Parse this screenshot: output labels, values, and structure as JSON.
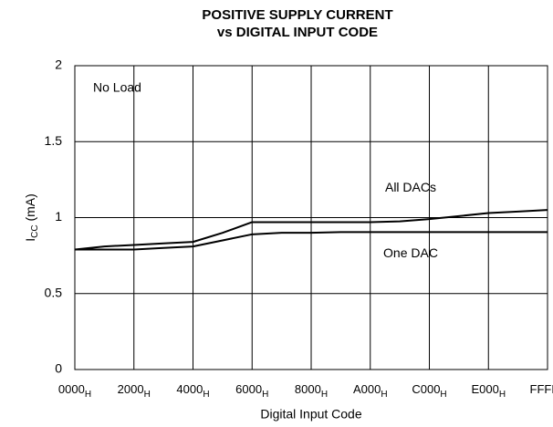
{
  "chart_data": {
    "type": "line",
    "title": [
      "POSITIVE SUPPLY CURRENT",
      "vs DIGITAL INPUT CODE"
    ],
    "xlabel": "Digital Input Code",
    "ylabel_parts": [
      "I",
      "CC",
      " (mA)"
    ],
    "xlim": [
      0,
      65535
    ],
    "xticks": [
      {
        "value": 0,
        "label": "0000",
        "sub": "H"
      },
      {
        "value": 8192,
        "label": "2000",
        "sub": "H"
      },
      {
        "value": 16384,
        "label": "4000",
        "sub": "H"
      },
      {
        "value": 24576,
        "label": "6000",
        "sub": "H"
      },
      {
        "value": 32768,
        "label": "8000",
        "sub": "H"
      },
      {
        "value": 40960,
        "label": "A000",
        "sub": "H"
      },
      {
        "value": 49152,
        "label": "C000",
        "sub": "H"
      },
      {
        "value": 57344,
        "label": "E000",
        "sub": "H"
      },
      {
        "value": 65535,
        "label": "FFFF",
        "sub": "H"
      }
    ],
    "ylim": [
      0,
      2
    ],
    "yticks": [
      0,
      0.5,
      1,
      1.5,
      2
    ],
    "grid": true,
    "series": [
      {
        "name": "All DACs",
        "color": "#000000",
        "x": [
          0,
          4096,
          8192,
          12288,
          16384,
          20480,
          24576,
          28672,
          32768,
          36864,
          40960,
          45056,
          49152,
          53248,
          57344,
          61440,
          65535
        ],
        "values": [
          0.79,
          0.81,
          0.82,
          0.83,
          0.84,
          0.9,
          0.97,
          0.97,
          0.97,
          0.97,
          0.97,
          0.975,
          0.99,
          1.01,
          1.03,
          1.04,
          1.05
        ]
      },
      {
        "name": "One DAC",
        "color": "#000000",
        "x": [
          0,
          4096,
          8192,
          12288,
          16384,
          20480,
          24576,
          28672,
          32768,
          36864,
          40960,
          45056,
          49152,
          53248,
          57344,
          61440,
          65535
        ],
        "values": [
          0.79,
          0.79,
          0.79,
          0.8,
          0.81,
          0.85,
          0.89,
          0.9,
          0.9,
          0.905,
          0.905,
          0.905,
          0.905,
          0.905,
          0.905,
          0.905,
          0.905
        ]
      }
    ],
    "annotations": [
      "No Load"
    ]
  }
}
